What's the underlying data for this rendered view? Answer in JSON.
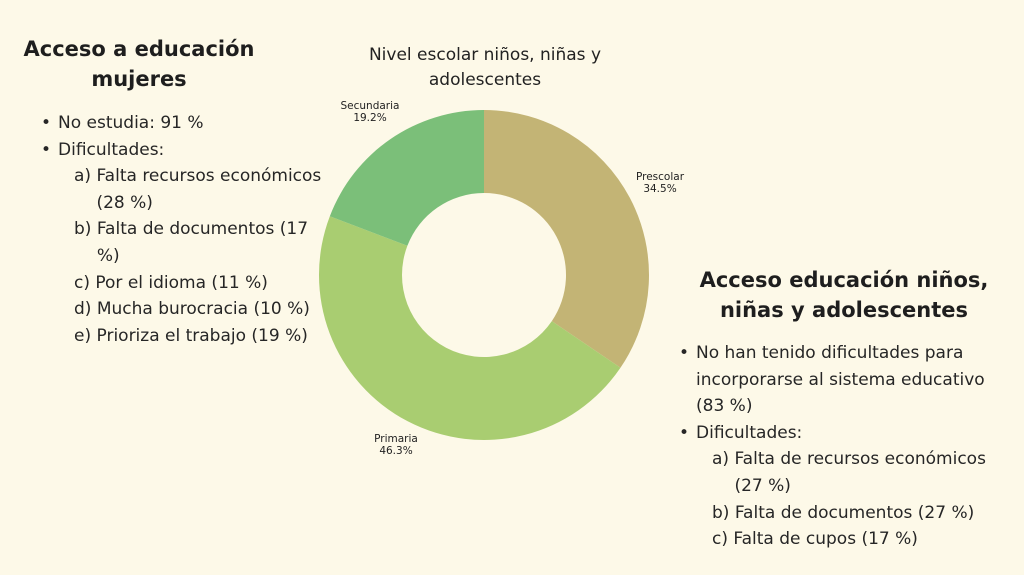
{
  "left_panel": {
    "title": "Acceso a educación mujeres",
    "items": [
      {
        "text": "No estudia: 91 %"
      },
      {
        "text": "Dificultades:",
        "sub": [
          {
            "letter": "a)",
            "text": "Falta recursos económicos (28 %)"
          },
          {
            "letter": "b)",
            "text": "Falta de documentos (17 %)"
          },
          {
            "letter": "c)",
            "text": "Por el idioma (11 %)"
          },
          {
            "letter": "d)",
            "text": "Mucha burocracia (10 %)"
          },
          {
            "letter": "e)",
            "text": "Prioriza el trabajo (19 %)"
          }
        ]
      }
    ]
  },
  "right_panel": {
    "title": "Acceso educación niños, niñas y adolescentes",
    "items": [
      {
        "text": "No han tenido dificultades para incorporarse al sistema educativo (83 %)"
      },
      {
        "text": "Dificultades:",
        "sub": [
          {
            "letter": "a)",
            "text": "Falta de recursos económicos (27 %)"
          },
          {
            "letter": "b)",
            "text": "Falta de documentos (27 %)"
          },
          {
            "letter": "c)",
            "text": "Falta de cupos (17 %)"
          }
        ]
      }
    ]
  },
  "chart_data": {
    "type": "pie",
    "title": "Nivel escolar niños, niñas y adolescentes",
    "donut": true,
    "slices": [
      {
        "label": "Prescolar",
        "value": 34.5,
        "value_label": "34.5%",
        "color": "#c3b475"
      },
      {
        "label": "Primaria",
        "value": 46.3,
        "value_label": "46.3%",
        "color": "#a9cd71"
      },
      {
        "label": "Secundaria",
        "value": 19.2,
        "value_label": "19.2%",
        "color": "#7bbf79"
      }
    ]
  },
  "colors": {
    "background": "#fdf9e8",
    "text": "#262626"
  }
}
